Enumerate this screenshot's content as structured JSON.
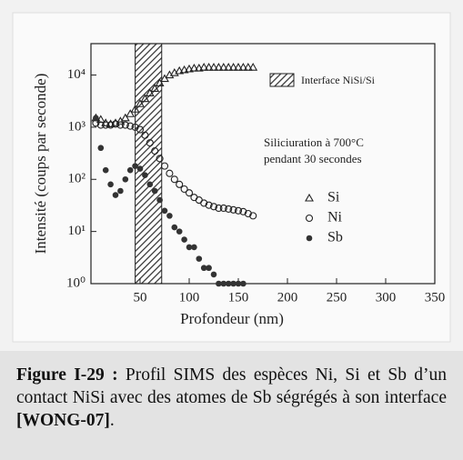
{
  "chart_data": {
    "type": "scatter",
    "xlabel": "Profondeur (nm)",
    "ylabel": "Intensité (coups par seconde)",
    "log_y": true,
    "xlim": [
      0,
      350
    ],
    "xticks": [
      50,
      100,
      150,
      200,
      250,
      300,
      350
    ],
    "ylim": [
      1,
      40000
    ],
    "yticks": [
      {
        "value": 1,
        "label": "10⁰"
      },
      {
        "value": 10,
        "label": "10¹"
      },
      {
        "value": 100,
        "label": "10²"
      },
      {
        "value": 1000,
        "label": "10³"
      },
      {
        "value": 10000,
        "label": "10⁴"
      }
    ],
    "shaded_region": {
      "x": [
        45,
        72
      ],
      "label": "Interface NiSi/Si"
    },
    "annotation": [
      "Siliciuration à 700°C",
      "pendant 30 secondes"
    ],
    "x": [
      5,
      10,
      15,
      20,
      25,
      30,
      35,
      40,
      45,
      50,
      55,
      60,
      65,
      70,
      75,
      80,
      85,
      90,
      95,
      100,
      105,
      110,
      115,
      120,
      125,
      130,
      135,
      140,
      145,
      150,
      155,
      160,
      165
    ],
    "series": [
      {
        "name": "Si",
        "marker": "triangle",
        "color": "#222222",
        "values": [
          1500,
          1400,
          1200,
          1150,
          1200,
          1300,
          1500,
          1800,
          2200,
          2800,
          3500,
          4500,
          5500,
          7000,
          8500,
          10000,
          11000,
          12000,
          12500,
          13000,
          13500,
          13500,
          14000,
          14000,
          14000,
          14000,
          14000,
          14000,
          14000,
          14000,
          14000,
          14000,
          14000
        ]
      },
      {
        "name": "Ni",
        "marker": "circle",
        "color": "#222222",
        "values": [
          1200,
          1100,
          1100,
          1100,
          1150,
          1100,
          1100,
          1050,
          1000,
          900,
          700,
          500,
          350,
          250,
          180,
          130,
          100,
          80,
          65,
          55,
          45,
          40,
          35,
          32,
          30,
          28,
          28,
          27,
          26,
          25,
          24,
          22,
          20
        ]
      },
      {
        "name": "Sb",
        "marker": "dot",
        "color": "#333333",
        "values": [
          1500,
          400,
          150,
          80,
          50,
          60,
          100,
          150,
          180,
          160,
          120,
          80,
          60,
          40,
          25,
          20,
          12,
          10,
          7,
          5,
          5,
          3,
          2,
          2,
          1.5,
          1,
          1,
          1,
          1,
          1,
          1,
          null,
          null
        ]
      }
    ]
  },
  "caption": {
    "label": "Figure I-29 :",
    "text": " Profil SIMS des espèces Ni, Si et Sb d’un contact NiSi avec des atomes de Sb ségrégés à son interface ",
    "reference": "[WONG-07]",
    "end": "."
  }
}
